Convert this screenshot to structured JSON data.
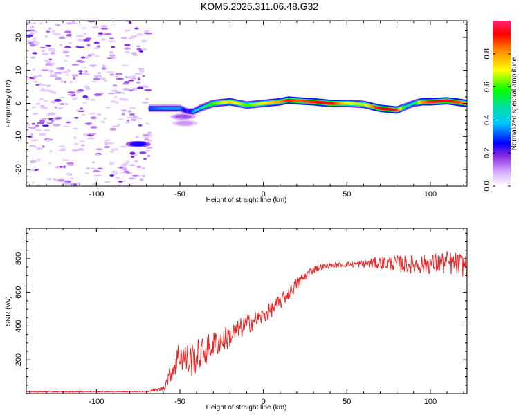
{
  "title": "KOM5.2025.311.06.48.G32",
  "colors": {
    "snr_line": "#ee2222",
    "axis": "#000000"
  },
  "chart_data": [
    {
      "type": "heatmap",
      "title": "KOM5.2025.311.06.48.G32",
      "xlabel": "Height of straight line (km)",
      "ylabel": "Frequency (Hz)",
      "xlim": [
        -142,
        122
      ],
      "ylim": [
        -25,
        25
      ],
      "xticks": [
        -100,
        -50,
        0,
        50,
        100
      ],
      "yticks": [
        -20,
        -10,
        0,
        10,
        20
      ],
      "xtick_labels": [
        "-100",
        "-50",
        "0",
        "50",
        "100"
      ],
      "ytick_labels": [
        "-20",
        "-10",
        "0",
        "10",
        "20"
      ],
      "ridge": {
        "x": [
          -68,
          -60,
          -50,
          -45,
          -42,
          -38,
          -30,
          -20,
          -10,
          0,
          10,
          15,
          20,
          30,
          40,
          50,
          60,
          70,
          80,
          85,
          90,
          95,
          100,
          110,
          122
        ],
        "freq": [
          -1.5,
          -1.5,
          -1.5,
          -2.5,
          -2.5,
          -1.5,
          0,
          0.5,
          -0.5,
          0,
          0.5,
          1,
          0.8,
          0.5,
          0,
          0,
          -0.3,
          -1.5,
          -2,
          -1,
          0,
          0.5,
          0.5,
          0.8,
          0
        ],
        "amplitude": [
          0.3,
          0.35,
          0.35,
          0.2,
          0.35,
          0.45,
          0.6,
          0.75,
          0.6,
          0.7,
          0.8,
          0.9,
          0.85,
          0.9,
          0.95,
          0.7,
          0.65,
          0.95,
          0.9,
          0.5,
          0.45,
          0.8,
          0.9,
          0.95,
          0.8
        ]
      },
      "blobs": [
        {
          "x": -75,
          "freq": -12.3,
          "amplitude": 0.25
        },
        {
          "x": -48,
          "freq": -4.0,
          "amplitude": 0.15
        },
        {
          "x": -47,
          "freq": -6.0,
          "amplitude": 0.1
        }
      ],
      "colorbar": {
        "label": "Normalized spectral amplitude",
        "range": [
          0,
          1
        ],
        "ticks": [
          0.0,
          0.2,
          0.4,
          0.6,
          0.8
        ],
        "tick_labels": [
          "0.0",
          "0.2",
          "0.4",
          "0.6",
          "0.8"
        ]
      }
    },
    {
      "type": "line",
      "xlabel": "Height of straight line (km)",
      "ylabel": "SNR (v/v)",
      "xlim": [
        -142,
        122
      ],
      "ylim": [
        0,
        980
      ],
      "xticks": [
        -100,
        -50,
        0,
        50,
        100
      ],
      "yticks": [
        200,
        400,
        600,
        800
      ],
      "xtick_labels": [
        "-100",
        "-50",
        "0",
        "50",
        "100"
      ],
      "ytick_labels": [
        "200",
        "400",
        "600",
        "800"
      ],
      "trend": {
        "x": [
          -142,
          -70,
          -60,
          -55,
          -50,
          -45,
          -40,
          -30,
          -20,
          -10,
          0,
          10,
          20,
          30,
          40,
          50,
          60,
          70,
          80,
          90,
          100,
          110,
          122
        ],
        "y": [
          10,
          12,
          30,
          130,
          240,
          190,
          220,
          290,
          340,
          410,
          460,
          540,
          650,
          740,
          760,
          765,
          770,
          775,
          770,
          765,
          770,
          775,
          760
        ],
        "noise": [
          3,
          3,
          15,
          60,
          100,
          110,
          100,
          80,
          70,
          60,
          50,
          45,
          40,
          25,
          15,
          15,
          25,
          40,
          50,
          55,
          60,
          70,
          70
        ]
      }
    }
  ]
}
